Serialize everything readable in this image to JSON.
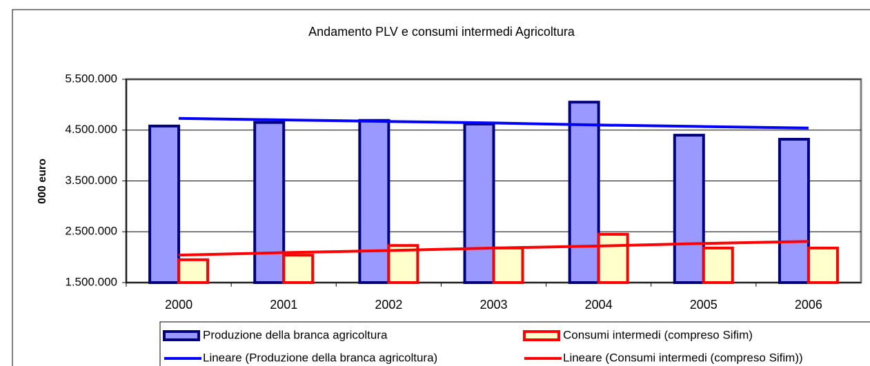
{
  "chart_data": {
    "type": "bar",
    "title": "Andamento PLV e consumi intermedi Agricoltura",
    "ylabel": "000 euro",
    "categories": [
      "2000",
      "2001",
      "2002",
      "2003",
      "2004",
      "2005",
      "2006"
    ],
    "ylim": [
      1500000,
      5500000
    ],
    "yticks": [
      {
        "value": 1500000,
        "label": "1.500.000"
      },
      {
        "value": 2500000,
        "label": "2.500.000"
      },
      {
        "value": 3500000,
        "label": "3.500.000"
      },
      {
        "value": 4500000,
        "label": "4.500.000"
      },
      {
        "value": 5500000,
        "label": "5.500.000"
      }
    ],
    "grid": true,
    "legend": "bottom",
    "series": [
      {
        "name": "Produzione della branca agricoltura",
        "type": "bar",
        "color": "#9999ff",
        "edge": "#000080",
        "values": [
          4580000,
          4650000,
          4690000,
          4620000,
          5050000,
          4400000,
          4320000
        ]
      },
      {
        "name": "Consumi intermedi (compreso Sifim)",
        "type": "bar",
        "color": "#ffffcc",
        "edge": "#ff0000",
        "values": [
          1950000,
          2040000,
          2230000,
          2180000,
          2450000,
          2180000,
          2180000
        ]
      },
      {
        "name": "Lineare (Produzione della branca agricoltura)",
        "type": "line",
        "color": "#0000ff",
        "values": [
          4730000,
          4700000,
          4670000,
          4640000,
          4600000,
          4570000,
          4540000
        ]
      },
      {
        "name": "Lineare (Consumi intermedi (compreso Sifim))",
        "type": "line",
        "color": "#ff0000",
        "values": [
          2040000,
          2090000,
          2130000,
          2180000,
          2220000,
          2270000,
          2310000
        ]
      }
    ]
  }
}
